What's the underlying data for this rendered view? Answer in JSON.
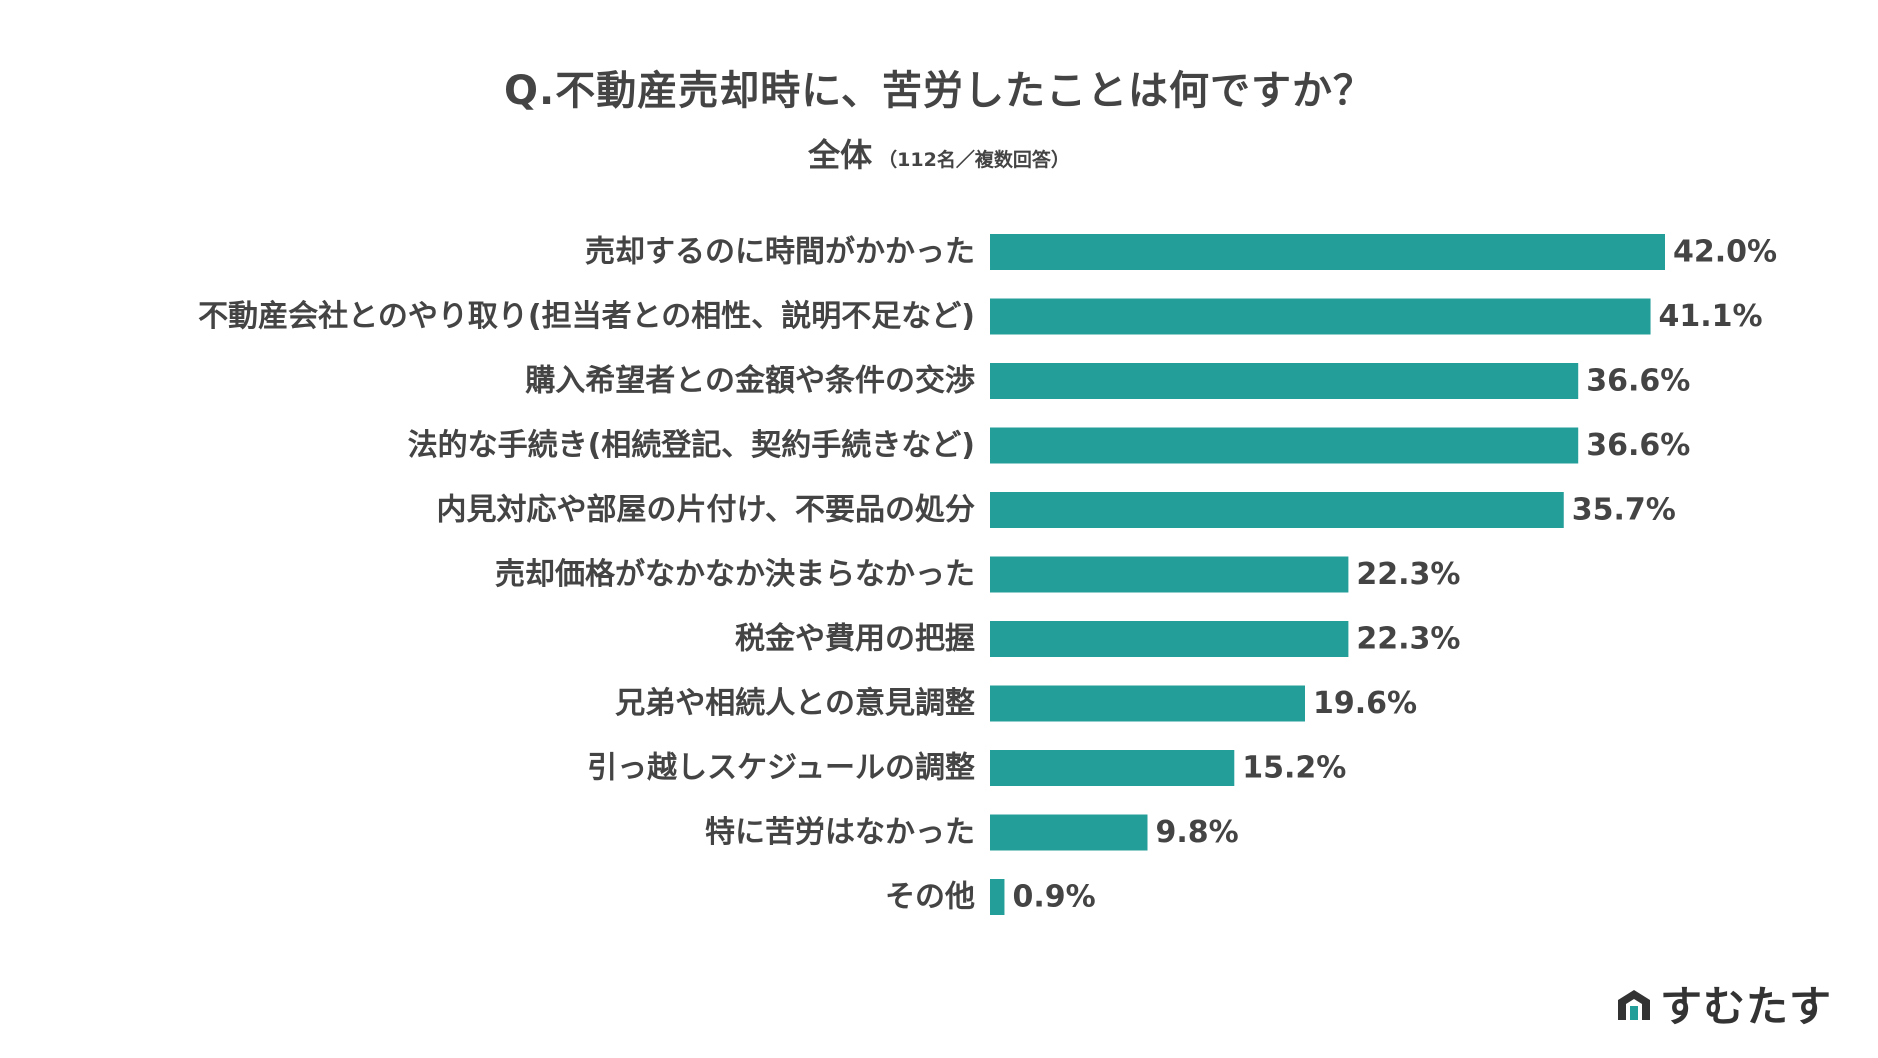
{
  "header": {
    "title": "Q.不動産売却時に、苦労したことは何ですか？",
    "subtitle_main": "全体",
    "subtitle_note": "（112名／複数回答）"
  },
  "chart_data": {
    "type": "bar",
    "orientation": "horizontal",
    "title": "Q.不動産売却時に、苦労したことは何ですか？",
    "subtitle": "全体（112名／複数回答）",
    "categories": [
      "売却するのに時間がかかった",
      "不動産会社とのやり取り(担当者との相性、説明不足など)",
      "購入希望者との金額や条件の交渉",
      "法的な手続き(相続登記、契約手続きなど)",
      "内見対応や部屋の片付け、不要品の処分",
      "売却価格がなかなか決まらなかった",
      "税金や費用の把握",
      "兄弟や相続人との意見調整",
      "引っ越しスケジュールの調整",
      "特に苦労はなかった",
      "その他"
    ],
    "values": [
      42.0,
      41.1,
      36.6,
      36.6,
      35.7,
      22.3,
      22.3,
      19.6,
      15.2,
      9.8,
      0.9
    ],
    "value_labels": [
      "42.0%",
      "41.1%",
      "36.6%",
      "36.6%",
      "35.7%",
      "22.3%",
      "22.3%",
      "19.6%",
      "15.2%",
      "9.8%",
      "0.9%"
    ],
    "unit": "%",
    "xlim": [
      0,
      42
    ],
    "grid": false,
    "bar_color": "#239E98"
  },
  "brand": {
    "name": "すむたす",
    "icon": "house-logo-icon"
  },
  "colors": {
    "bar": "#239E98",
    "text": "#444444"
  }
}
